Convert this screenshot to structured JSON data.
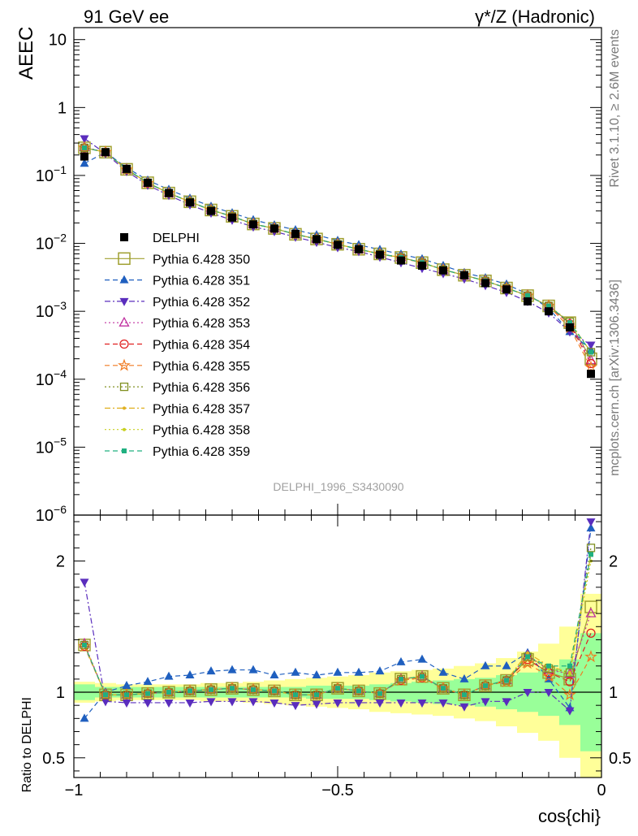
{
  "header": {
    "left": "91 GeV ee",
    "right": "γ*/Z (Hadronic)"
  },
  "side_labels": {
    "rivet": "Rivet 3.1.10, ≥ 2.6M events",
    "mcplots": "mcplots.cern.ch [arXiv:1306.3436]"
  },
  "watermark": "DELPHI_1996_S3430090",
  "chart_data": [
    {
      "type": "line",
      "panel": "main",
      "ylabel": "AEEC",
      "xlabel": "cos{chi}",
      "xlim": [
        -1.0,
        0.0
      ],
      "ylim": [
        1e-06,
        15
      ],
      "y_scale": "log",
      "y_ticks": [
        "10^-6",
        "10^-5",
        "10^-4",
        "10^-3",
        "10^-2",
        "10^-1",
        "1",
        "10"
      ],
      "x_ticks": [
        "−1",
        "−0.5",
        "0"
      ],
      "legend_position": "center-left",
      "x": [
        -0.98,
        -0.94,
        -0.9,
        -0.86,
        -0.82,
        -0.78,
        -0.74,
        -0.7,
        -0.66,
        -0.62,
        -0.58,
        -0.54,
        -0.5,
        -0.46,
        -0.42,
        -0.38,
        -0.34,
        -0.3,
        -0.26,
        -0.22,
        -0.18,
        -0.14,
        -0.1,
        -0.06,
        -0.02
      ],
      "series": [
        {
          "name": "DELPHI",
          "color": "#000000",
          "marker": "filled-square",
          "line": "none",
          "values": [
            0.19,
            0.22,
            0.125,
            0.078,
            0.055,
            0.04,
            0.03,
            0.024,
            0.019,
            0.0165,
            0.0138,
            0.0115,
            0.0095,
            0.0082,
            0.0068,
            0.0056,
            0.0047,
            0.004,
            0.0034,
            0.0026,
            0.0021,
            0.0014,
            0.001,
            0.00058,
            0.00012
          ]
        },
        {
          "name": "Pythia 6.428 350",
          "color": "#a0a030",
          "marker": "open-square-large",
          "line": "solid",
          "values": [
            0.255,
            0.22,
            0.123,
            0.078,
            0.055,
            0.041,
            0.031,
            0.025,
            0.0193,
            0.0166,
            0.0136,
            0.0116,
            0.0097,
            0.0082,
            0.007,
            0.0062,
            0.0052,
            0.0041,
            0.0034,
            0.0028,
            0.0022,
            0.0017,
            0.0012,
            0.00068,
            0.0002
          ]
        },
        {
          "name": "Pythia 6.428 351",
          "color": "#1f5fbf",
          "marker": "filled-triangle-up",
          "line": "dashed",
          "values": [
            0.15,
            0.22,
            0.13,
            0.085,
            0.062,
            0.046,
            0.035,
            0.028,
            0.0222,
            0.0186,
            0.0158,
            0.0133,
            0.011,
            0.0095,
            0.0081,
            0.0069,
            0.0059,
            0.0047,
            0.0037,
            0.0031,
            0.0025,
            0.0018,
            0.0011,
            0.0005,
            0.00027
          ]
        },
        {
          "name": "Pythia 6.428 352",
          "color": "#5a2dbd",
          "marker": "filled-triangle-down",
          "line": "dashdot",
          "values": [
            0.35,
            0.21,
            0.115,
            0.072,
            0.051,
            0.037,
            0.028,
            0.022,
            0.0175,
            0.015,
            0.0124,
            0.0104,
            0.0087,
            0.0076,
            0.0063,
            0.0052,
            0.0043,
            0.0036,
            0.003,
            0.0024,
            0.0019,
            0.0014,
            0.00095,
            0.0005,
            0.00032
          ]
        },
        {
          "name": "Pythia 6.428 353",
          "color": "#c030a0",
          "marker": "open-triangle-up",
          "line": "dotted",
          "values": [
            0.26,
            0.22,
            0.122,
            0.077,
            0.055,
            0.041,
            0.031,
            0.025,
            0.0193,
            0.0166,
            0.0136,
            0.0116,
            0.0097,
            0.0082,
            0.007,
            0.0062,
            0.0052,
            0.0041,
            0.0034,
            0.0028,
            0.0022,
            0.0017,
            0.0012,
            0.00066,
            0.00019
          ]
        },
        {
          "name": "Pythia 6.428 354",
          "color": "#e02020",
          "marker": "open-circle",
          "line": "dashed",
          "values": [
            0.255,
            0.22,
            0.122,
            0.077,
            0.055,
            0.041,
            0.031,
            0.025,
            0.0193,
            0.0166,
            0.0136,
            0.0116,
            0.0097,
            0.0082,
            0.007,
            0.0061,
            0.0052,
            0.0041,
            0.0034,
            0.0028,
            0.0022,
            0.0017,
            0.0012,
            0.00065,
            0.00017
          ]
        },
        {
          "name": "Pythia 6.428 355",
          "color": "#f07a20",
          "marker": "open-star",
          "line": "dashed",
          "values": [
            0.255,
            0.22,
            0.122,
            0.077,
            0.055,
            0.041,
            0.031,
            0.025,
            0.0193,
            0.0166,
            0.0136,
            0.0116,
            0.0097,
            0.0082,
            0.007,
            0.0061,
            0.0052,
            0.0041,
            0.0034,
            0.0028,
            0.0022,
            0.0017,
            0.0012,
            0.00057,
            0.00015
          ]
        },
        {
          "name": "Pythia 6.428 356",
          "color": "#809020",
          "marker": "open-square",
          "line": "dotted",
          "values": [
            0.255,
            0.22,
            0.123,
            0.078,
            0.055,
            0.041,
            0.031,
            0.025,
            0.0193,
            0.0166,
            0.0136,
            0.0116,
            0.0097,
            0.0082,
            0.007,
            0.0062,
            0.0052,
            0.0041,
            0.0034,
            0.0028,
            0.0022,
            0.0017,
            0.0012,
            0.0007,
            0.00025
          ]
        },
        {
          "name": "Pythia 6.428 357",
          "color": "#e0b020",
          "marker": "small-dot",
          "line": "dashdot",
          "values": [
            0.255,
            0.22,
            0.123,
            0.078,
            0.055,
            0.041,
            0.031,
            0.025,
            0.0193,
            0.0166,
            0.0136,
            0.0116,
            0.0097,
            0.0082,
            0.007,
            0.0062,
            0.0052,
            0.0041,
            0.0034,
            0.0028,
            0.0022,
            0.0017,
            0.0012,
            0.0007,
            0.00025
          ]
        },
        {
          "name": "Pythia 6.428 358",
          "color": "#c8d020",
          "marker": "small-dot",
          "line": "dotted",
          "values": [
            0.255,
            0.22,
            0.123,
            0.078,
            0.055,
            0.041,
            0.031,
            0.025,
            0.0193,
            0.0166,
            0.0136,
            0.0116,
            0.0097,
            0.0082,
            0.007,
            0.0062,
            0.0052,
            0.0041,
            0.0034,
            0.0028,
            0.0022,
            0.0017,
            0.0012,
            0.0007,
            0.00025
          ]
        },
        {
          "name": "Pythia 6.428 359",
          "color": "#20b080",
          "marker": "filled-square-small",
          "line": "dashed",
          "values": [
            0.255,
            0.22,
            0.123,
            0.078,
            0.055,
            0.041,
            0.031,
            0.025,
            0.0193,
            0.0166,
            0.0136,
            0.0116,
            0.0097,
            0.0082,
            0.007,
            0.0062,
            0.0052,
            0.0041,
            0.0034,
            0.0028,
            0.0022,
            0.0017,
            0.0012,
            0.00068,
            0.00025
          ]
        }
      ]
    },
    {
      "type": "line",
      "panel": "ratio",
      "ylabel": "Ratio to DELPHI",
      "xlabel": "cos{chi}",
      "xlim": [
        -1.0,
        0.0
      ],
      "ylim": [
        0.35,
        2.35
      ],
      "y_ticks": [
        "0.5",
        "1",
        "2"
      ],
      "x_ticks": [
        "−1",
        "−0.5",
        "0"
      ],
      "x": [
        -0.98,
        -0.94,
        -0.9,
        -0.86,
        -0.82,
        -0.78,
        -0.74,
        -0.7,
        -0.66,
        -0.62,
        -0.58,
        -0.54,
        -0.5,
        -0.46,
        -0.42,
        -0.38,
        -0.34,
        -0.3,
        -0.26,
        -0.22,
        -0.18,
        -0.14,
        -0.1,
        -0.06,
        -0.02
      ],
      "band_inner": [
        0.06,
        0.04,
        0.04,
        0.04,
        0.04,
        0.04,
        0.04,
        0.04,
        0.04,
        0.04,
        0.04,
        0.05,
        0.05,
        0.05,
        0.06,
        0.07,
        0.08,
        0.09,
        0.1,
        0.11,
        0.13,
        0.15,
        0.18,
        0.25,
        0.45
      ],
      "band_outer": [
        0.08,
        0.07,
        0.06,
        0.06,
        0.06,
        0.06,
        0.07,
        0.07,
        0.08,
        0.09,
        0.1,
        0.11,
        0.12,
        0.13,
        0.15,
        0.16,
        0.17,
        0.18,
        0.2,
        0.22,
        0.26,
        0.31,
        0.37,
        0.5,
        0.75
      ],
      "series": [
        {
          "name": "Pythia 6.428 350",
          "color": "#a0a030",
          "marker": "open-square-large",
          "line": "solid",
          "values": [
            1.36,
            0.98,
            0.98,
            0.99,
            1.0,
            1.01,
            1.02,
            1.03,
            1.02,
            1.01,
            0.98,
            0.98,
            1.03,
            1.01,
            0.99,
            1.1,
            1.12,
            1.03,
            0.98,
            1.05,
            1.09,
            1.25,
            1.15,
            1.1,
            1.65
          ]
        },
        {
          "name": "Pythia 6.428 351",
          "color": "#1f5fbf",
          "marker": "filled-triangle-up",
          "line": "dashed",
          "values": [
            0.8,
            1.0,
            1.05,
            1.08,
            1.12,
            1.13,
            1.16,
            1.17,
            1.17,
            1.13,
            1.15,
            1.13,
            1.15,
            1.15,
            1.16,
            1.23,
            1.25,
            1.15,
            1.1,
            1.2,
            1.2,
            1.3,
            1.1,
            0.88,
            2.25
          ]
        },
        {
          "name": "Pythia 6.428 352",
          "color": "#5a2dbd",
          "marker": "filled-triangle-down",
          "line": "dashdot",
          "values": [
            1.84,
            0.93,
            0.92,
            0.92,
            0.92,
            0.92,
            0.93,
            0.93,
            0.93,
            0.92,
            0.9,
            0.91,
            0.92,
            0.92,
            0.92,
            0.92,
            0.92,
            0.92,
            0.89,
            0.93,
            0.93,
            1.0,
            1.0,
            0.86,
            2.3
          ]
        },
        {
          "name": "Pythia 6.428 353",
          "color": "#c030a0",
          "marker": "open-triangle-up",
          "line": "dotted",
          "values": [
            1.37,
            0.98,
            0.98,
            0.99,
            1.0,
            1.01,
            1.02,
            1.03,
            1.02,
            1.01,
            0.98,
            0.98,
            1.03,
            1.01,
            0.99,
            1.1,
            1.12,
            1.03,
            0.98,
            1.05,
            1.09,
            1.28,
            1.17,
            1.14,
            1.6
          ]
        },
        {
          "name": "Pythia 6.428 354",
          "color": "#e02020",
          "marker": "open-circle",
          "line": "dashed",
          "values": [
            1.35,
            0.98,
            0.98,
            0.99,
            1.0,
            1.01,
            1.02,
            1.03,
            1.02,
            1.01,
            0.98,
            0.98,
            1.03,
            1.01,
            0.99,
            1.09,
            1.11,
            1.03,
            0.98,
            1.05,
            1.09,
            1.25,
            1.15,
            1.08,
            1.45
          ]
        },
        {
          "name": "Pythia 6.428 355",
          "color": "#f07a20",
          "marker": "open-star",
          "line": "dashed",
          "values": [
            1.35,
            0.98,
            0.98,
            0.99,
            1.0,
            1.01,
            1.02,
            1.03,
            1.02,
            1.01,
            0.98,
            0.98,
            1.03,
            1.01,
            0.99,
            1.09,
            1.11,
            1.03,
            0.98,
            1.05,
            1.08,
            1.22,
            1.12,
            0.98,
            1.27
          ]
        },
        {
          "name": "Pythia 6.428 356",
          "color": "#809020",
          "marker": "open-square",
          "line": "dotted",
          "values": [
            1.36,
            0.98,
            0.98,
            0.99,
            1.0,
            1.01,
            1.02,
            1.03,
            1.02,
            1.01,
            0.98,
            0.98,
            1.03,
            1.01,
            0.99,
            1.1,
            1.12,
            1.03,
            0.98,
            1.05,
            1.09,
            1.27,
            1.18,
            1.15,
            2.1
          ]
        },
        {
          "name": "Pythia 6.428 357",
          "color": "#e0b020",
          "marker": "small-dot",
          "line": "dashdot",
          "values": [
            1.36,
            0.98,
            0.98,
            0.99,
            1.0,
            1.01,
            1.02,
            1.03,
            1.02,
            1.01,
            0.98,
            0.98,
            1.03,
            1.01,
            0.99,
            1.1,
            1.12,
            1.03,
            0.98,
            1.05,
            1.09,
            1.3,
            1.2,
            1.15,
            2.05
          ]
        },
        {
          "name": "Pythia 6.428 358",
          "color": "#c8d020",
          "marker": "small-dot",
          "line": "dotted",
          "values": [
            1.36,
            0.98,
            0.98,
            0.99,
            1.0,
            1.01,
            1.02,
            1.03,
            1.02,
            1.01,
            0.98,
            0.98,
            1.03,
            1.01,
            0.99,
            1.1,
            1.12,
            1.03,
            0.98,
            1.05,
            1.09,
            1.28,
            1.18,
            1.14,
            2.0
          ]
        },
        {
          "name": "Pythia 6.428 359",
          "color": "#20b080",
          "marker": "filled-square-small",
          "line": "dashed",
          "values": [
            1.36,
            0.98,
            0.98,
            0.99,
            1.0,
            1.01,
            1.02,
            1.03,
            1.02,
            1.01,
            0.98,
            0.98,
            1.03,
            1.01,
            0.99,
            1.1,
            1.12,
            1.03,
            0.98,
            1.05,
            1.09,
            1.27,
            1.2,
            1.2,
            2.05
          ]
        }
      ]
    }
  ]
}
